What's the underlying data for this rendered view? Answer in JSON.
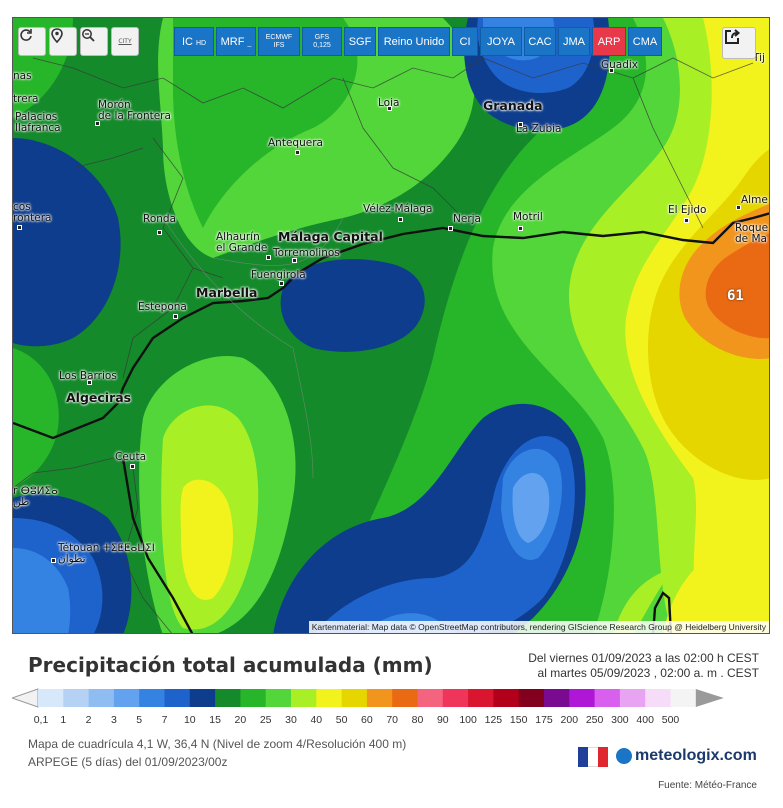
{
  "toolbar": {
    "city_btn": "CITY",
    "models": [
      {
        "main": "IC",
        "sub": "HD"
      },
      {
        "main": "MRF",
        "sub": "_"
      },
      {
        "main": "ECMWF",
        "sub": "IFS"
      },
      {
        "main": "GFS",
        "sub": "0,125"
      },
      {
        "main": "SGF",
        "sub": ""
      },
      {
        "main": "Reino Unido",
        "sub": ""
      },
      {
        "main": "CI",
        "sub": ""
      },
      {
        "main": "JOYA",
        "sub": ""
      },
      {
        "main": "CAC",
        "sub": ""
      },
      {
        "main": "JMA",
        "sub": ""
      },
      {
        "main": "ARP",
        "sub": ""
      },
      {
        "main": "CMA",
        "sub": ""
      }
    ],
    "active_model": "ARP",
    "icons": [
      "refresh-icon",
      "location-pin-icon",
      "zoom-out-icon",
      "city-icon",
      "share-icon"
    ]
  },
  "map": {
    "cities": [
      {
        "name": "Guadix"
      },
      {
        "name": "Loja"
      },
      {
        "name": "Granada",
        "big": true
      },
      {
        "name": "La Zubia"
      },
      {
        "name": "Morón\nde la Frontera"
      },
      {
        "name": "Antequera"
      },
      {
        "name": "Vélez-Málaga"
      },
      {
        "name": "Nerja"
      },
      {
        "name": "Motril"
      },
      {
        "name": "El Ejido"
      },
      {
        "name": "Alme"
      },
      {
        "name": "Roque\nde Ma"
      },
      {
        "name": "Ronda"
      },
      {
        "name": "Alhaurín\nel Grande"
      },
      {
        "name": "Málaga Capital",
        "big": true
      },
      {
        "name": "Torremolinos"
      },
      {
        "name": "Fuengirola"
      },
      {
        "name": "Marbella",
        "big": true
      },
      {
        "name": "Estepona"
      },
      {
        "name": "Los Barrios"
      },
      {
        "name": "Algeciras",
        "big": true
      },
      {
        "name": "Ceuta"
      },
      {
        "name": "Tétouan ⵜⵉⵟⵟⴰⵡⵉⵏ\nتطوان"
      },
      {
        "name": "nas"
      },
      {
        "name": "trera"
      },
      {
        "name": "Palacios\nllafranca"
      },
      {
        "name": "cos\nrontera"
      },
      {
        "name": "Tij"
      },
      {
        "name": "r ⴱⵓⵍⵉⴰ\nطن"
      }
    ],
    "value_label": "61",
    "attribution": "Kartenmaterial: Map data © OpenStreetMap contributors, rendering GIScience Research Group @ Heidelberg University"
  },
  "legend": {
    "title": "Precipitación total acumulada (mm)",
    "date_from": "Del viernes 01/09/2023 a  las 02:00 h  CEST",
    "date_to": "al martes 05/09/2023 , 02:00 a. m . CEST",
    "grid": "Mapa de cuadrícula 4,1 W, 36,4 N  (Nivel de zoom 4/Resolución 400 m)",
    "model_run": "ARPEGE  (5 días)  del 01/09/2023/00z",
    "brand": "meteologix.com",
    "source": "Fuente: Météo-France",
    "scale_labels": [
      "0,1",
      "1",
      "2",
      "3",
      "5",
      "7",
      "10",
      "15",
      "20",
      "25",
      "30",
      "40",
      "50",
      "60",
      "70",
      "80",
      "90",
      "100",
      "125",
      "150",
      "175",
      "200",
      "250",
      "300",
      "400",
      "500"
    ],
    "scale_colors": [
      "#d7e8fb",
      "#b5d2f5",
      "#8fbdf2",
      "#62a2ee",
      "#3483e3",
      "#1e62cc",
      "#0d3d8c",
      "#148a2b",
      "#27b52a",
      "#52d63a",
      "#a8ef26",
      "#f2f21c",
      "#e6d600",
      "#f1951d",
      "#ea6a13",
      "#f5647e",
      "#f0355a",
      "#d9152f",
      "#b3001a",
      "#82001d",
      "#7a0a8f",
      "#b016d6",
      "#d960ee",
      "#e8a3f3",
      "#f6dcf8",
      "#f4f4f4"
    ]
  }
}
